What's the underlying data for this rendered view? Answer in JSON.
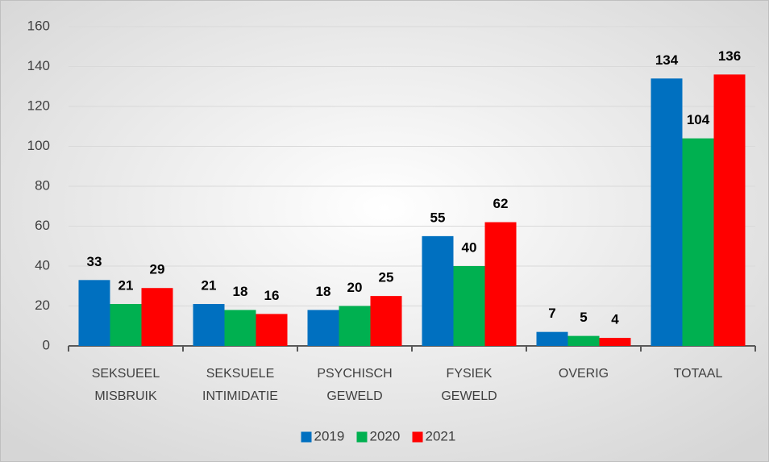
{
  "chart_data": {
    "type": "bar",
    "categories": [
      "SEKSUEEL MISBRUIK",
      "SEKSUELE INTIMIDATIE",
      "PSYCHISCH GEWELD",
      "FYSIEK GEWELD",
      "OVERIG",
      "TOTAAL"
    ],
    "series": [
      {
        "name": "2019",
        "color": "#0070c0",
        "values": [
          33,
          21,
          18,
          55,
          7,
          134
        ]
      },
      {
        "name": "2020",
        "color": "#00b050",
        "values": [
          21,
          18,
          20,
          40,
          5,
          104
        ]
      },
      {
        "name": "2021",
        "color": "#ff0000",
        "values": [
          29,
          16,
          25,
          62,
          4,
          136
        ]
      }
    ],
    "ylim": [
      0,
      160
    ],
    "yticks": [
      0,
      20,
      40,
      60,
      80,
      100,
      120,
      140,
      160
    ],
    "grid": true,
    "legend": "bottom"
  }
}
